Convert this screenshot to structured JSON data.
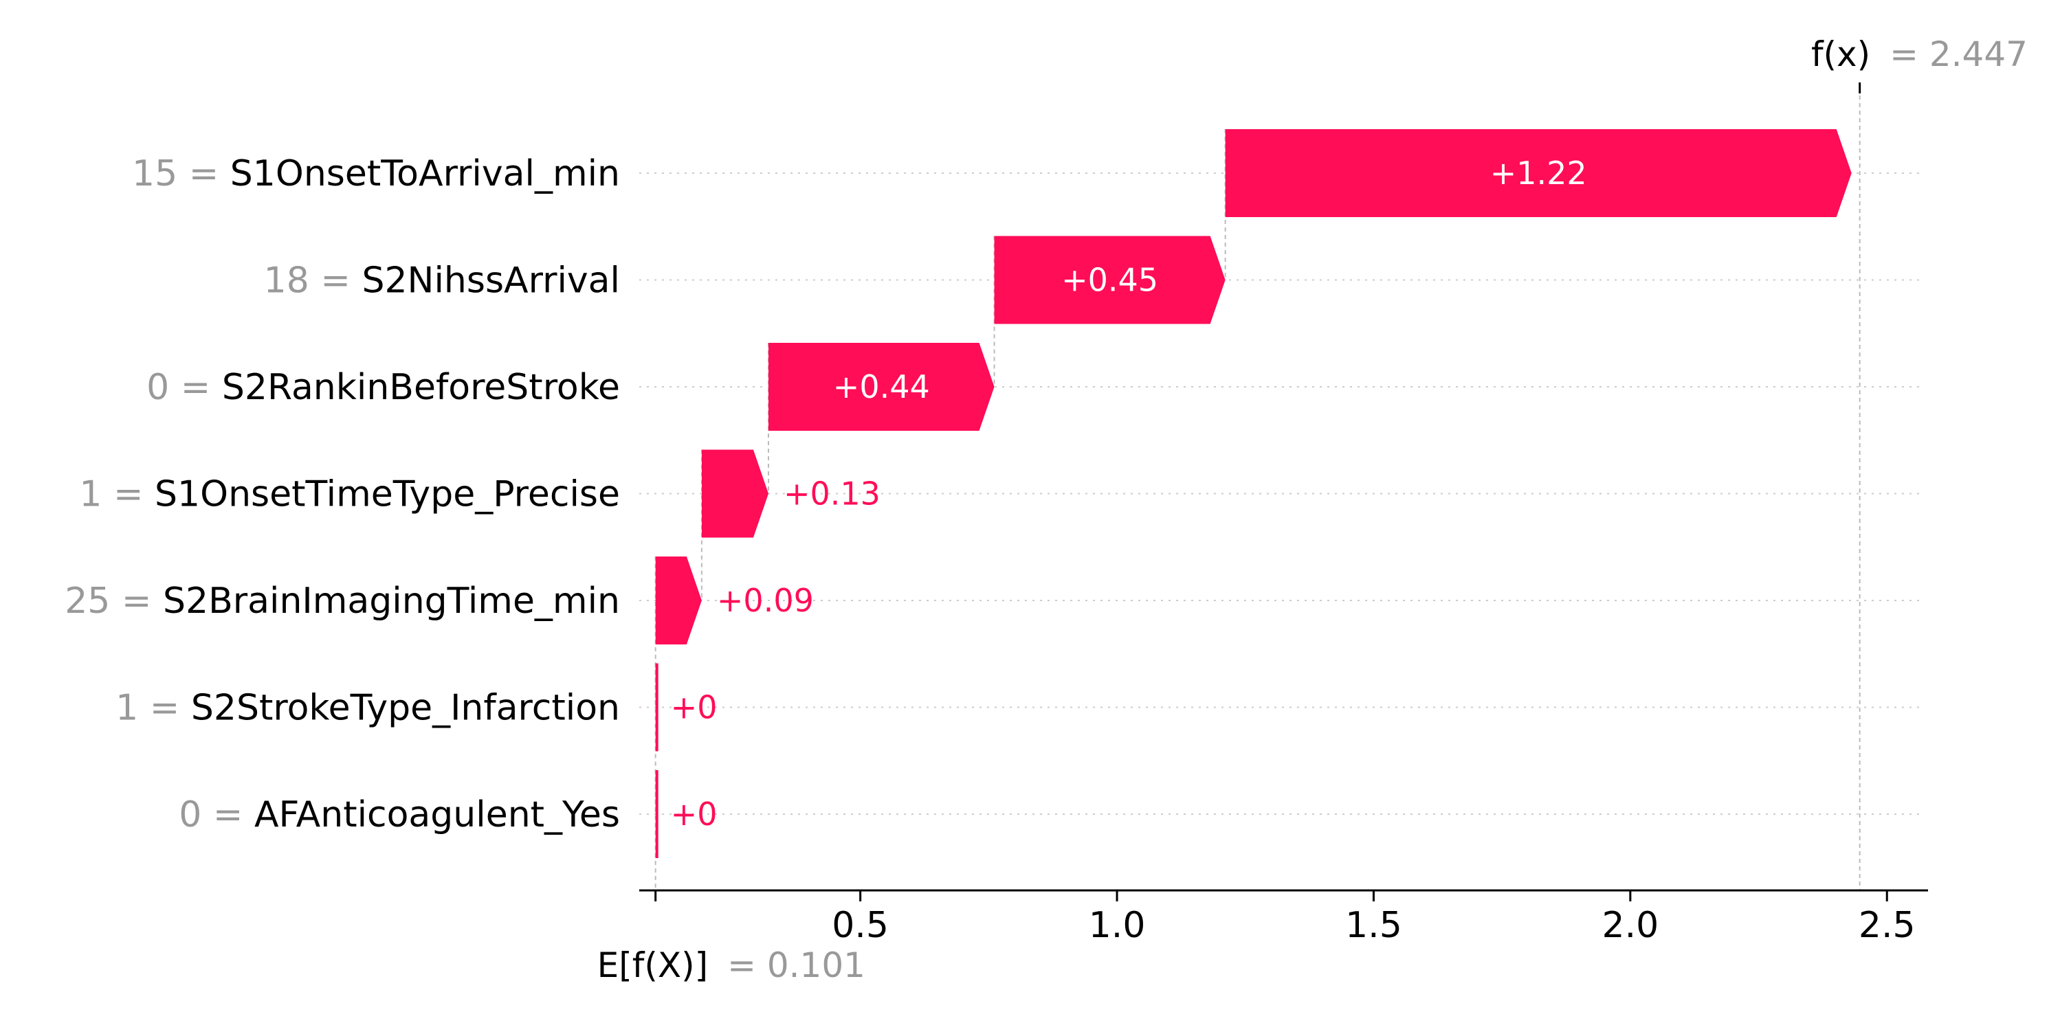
{
  "chart_data": {
    "type": "waterfall",
    "base_value": 0.101,
    "base_label_prefix": "E[f(X)]",
    "base_label_value": "= 0.101",
    "output_value": 2.447,
    "output_label_prefix": "f(x)",
    "output_label_value": "= 2.447",
    "features": [
      {
        "value": "15 =",
        "name": "S1OnsetToArrival_min",
        "contribution": 1.22,
        "label": "+1.22"
      },
      {
        "value": "18 =",
        "name": "S2NihssArrival",
        "contribution": 0.45,
        "label": "+0.45"
      },
      {
        "value": "0 =",
        "name": "S2RankinBeforeStroke",
        "contribution": 0.44,
        "label": "+0.44"
      },
      {
        "value": "1 =",
        "name": "S1OnsetTimeType_Precise",
        "contribution": 0.13,
        "label": "+0.13"
      },
      {
        "value": "25 =",
        "name": "S2BrainImagingTime_min",
        "contribution": 0.09,
        "label": "+0.09"
      },
      {
        "value": "1 =",
        "name": "S2StrokeType_Infarction",
        "contribution": 0.0,
        "label": "+0"
      },
      {
        "value": "0 =",
        "name": "AFAnticoagulent_Yes",
        "contribution": 0.0,
        "label": "+0"
      }
    ],
    "xticks": [
      0.5,
      1.0,
      1.5,
      2.0,
      2.5
    ],
    "xtick_labels": [
      "0.5",
      "1.0",
      "1.5",
      "2.0",
      "2.5"
    ],
    "xlim": [
      0.08,
      2.58
    ],
    "grid": false,
    "colors": {
      "positive": "#ff0d57",
      "muted_text": "#999999",
      "dash_line": "#bbbbbb",
      "row_dots": "#cccccc",
      "axis": "#000000"
    }
  }
}
